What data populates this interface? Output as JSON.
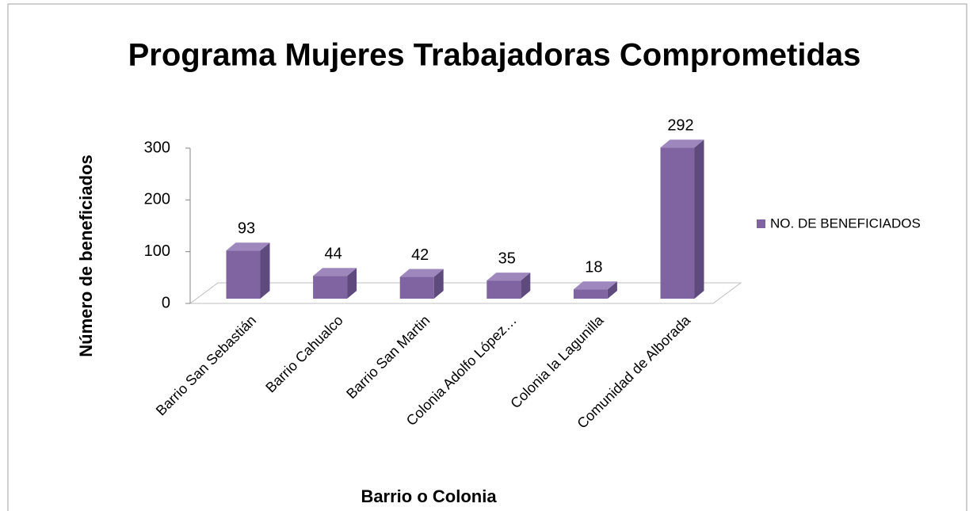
{
  "chart_data": {
    "type": "bar",
    "title": "Programa Mujeres Trabajadoras Comprometidas",
    "x_label": "Barrio o Colonia",
    "y_label": "Número de beneficiados",
    "categories": [
      "Barrio San Sebastián",
      "Barrio Cahualco",
      "Barrio San Martin",
      "Colonia Adolfo López…",
      "Colonia la Lagunilla",
      "Comunidad de Alborada"
    ],
    "series": [
      {
        "name": "NO. DE BENEFICIADOS",
        "color": "#8064a2",
        "values": [
          93,
          44,
          42,
          35,
          18,
          292
        ]
      }
    ],
    "ylim": [
      0,
      300
    ],
    "yticks": [
      0,
      100,
      200,
      300
    ],
    "legend": "right"
  }
}
